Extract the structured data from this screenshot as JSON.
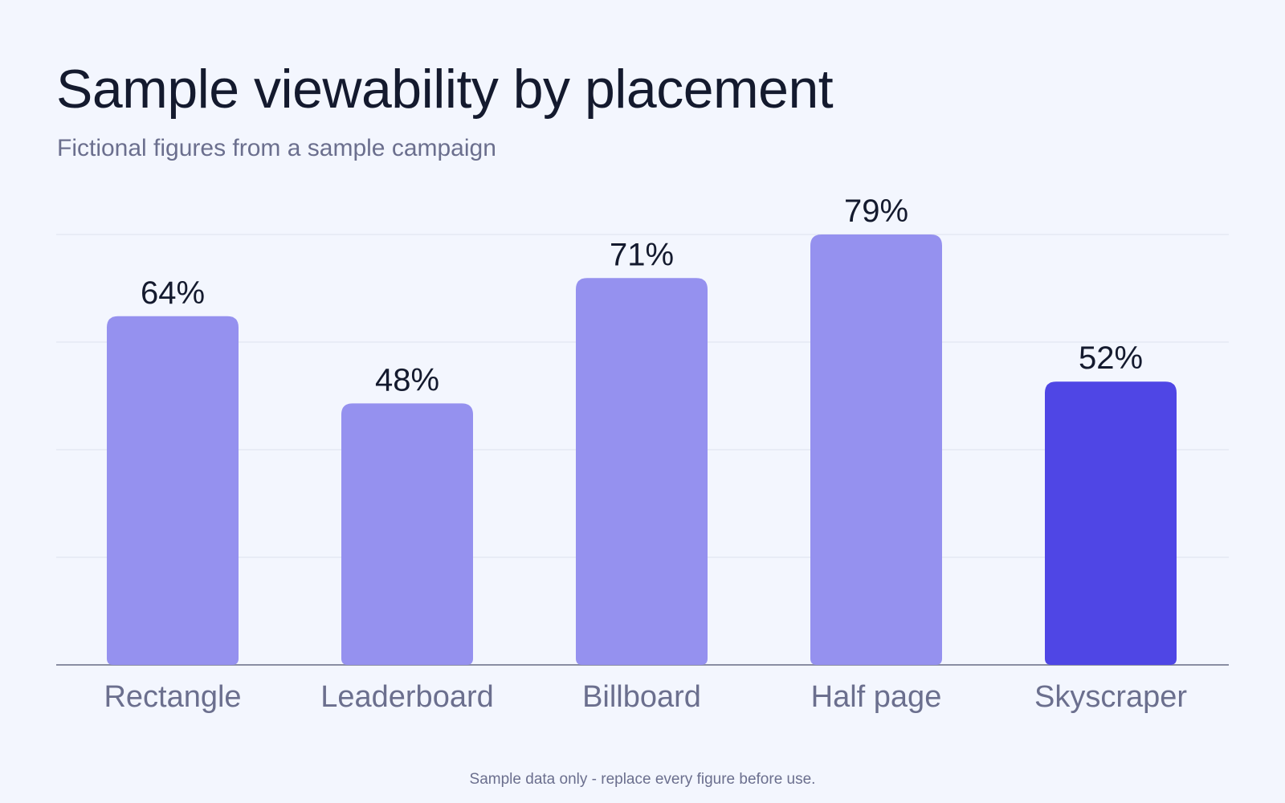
{
  "header": {
    "title": "Sample viewability by placement",
    "subtitle": "Fictional figures from a sample campaign"
  },
  "footer": {
    "note": "Sample data only - replace every figure before use."
  },
  "colors": {
    "bar": "#9591ef",
    "highlight": "#4f46e5",
    "grid": "#dde1ed",
    "axis": "#8a8ea3",
    "value_label": "#141a2e",
    "category_label": "#6b6f8e"
  },
  "chart_data": {
    "type": "bar",
    "title": "Sample viewability by placement",
    "subtitle": "Fictional figures from a sample campaign",
    "categories": [
      "Rectangle",
      "Leaderboard",
      "Billboard",
      "Half page",
      "Skyscraper"
    ],
    "values": [
      64,
      48,
      71,
      79,
      52
    ],
    "value_labels": [
      "64%",
      "48%",
      "71%",
      "79%",
      "52%"
    ],
    "highlight_category": "Skyscraper",
    "xlabel": "",
    "ylabel": "",
    "ylim": [
      0,
      79
    ],
    "grid": true,
    "legend": "none"
  }
}
